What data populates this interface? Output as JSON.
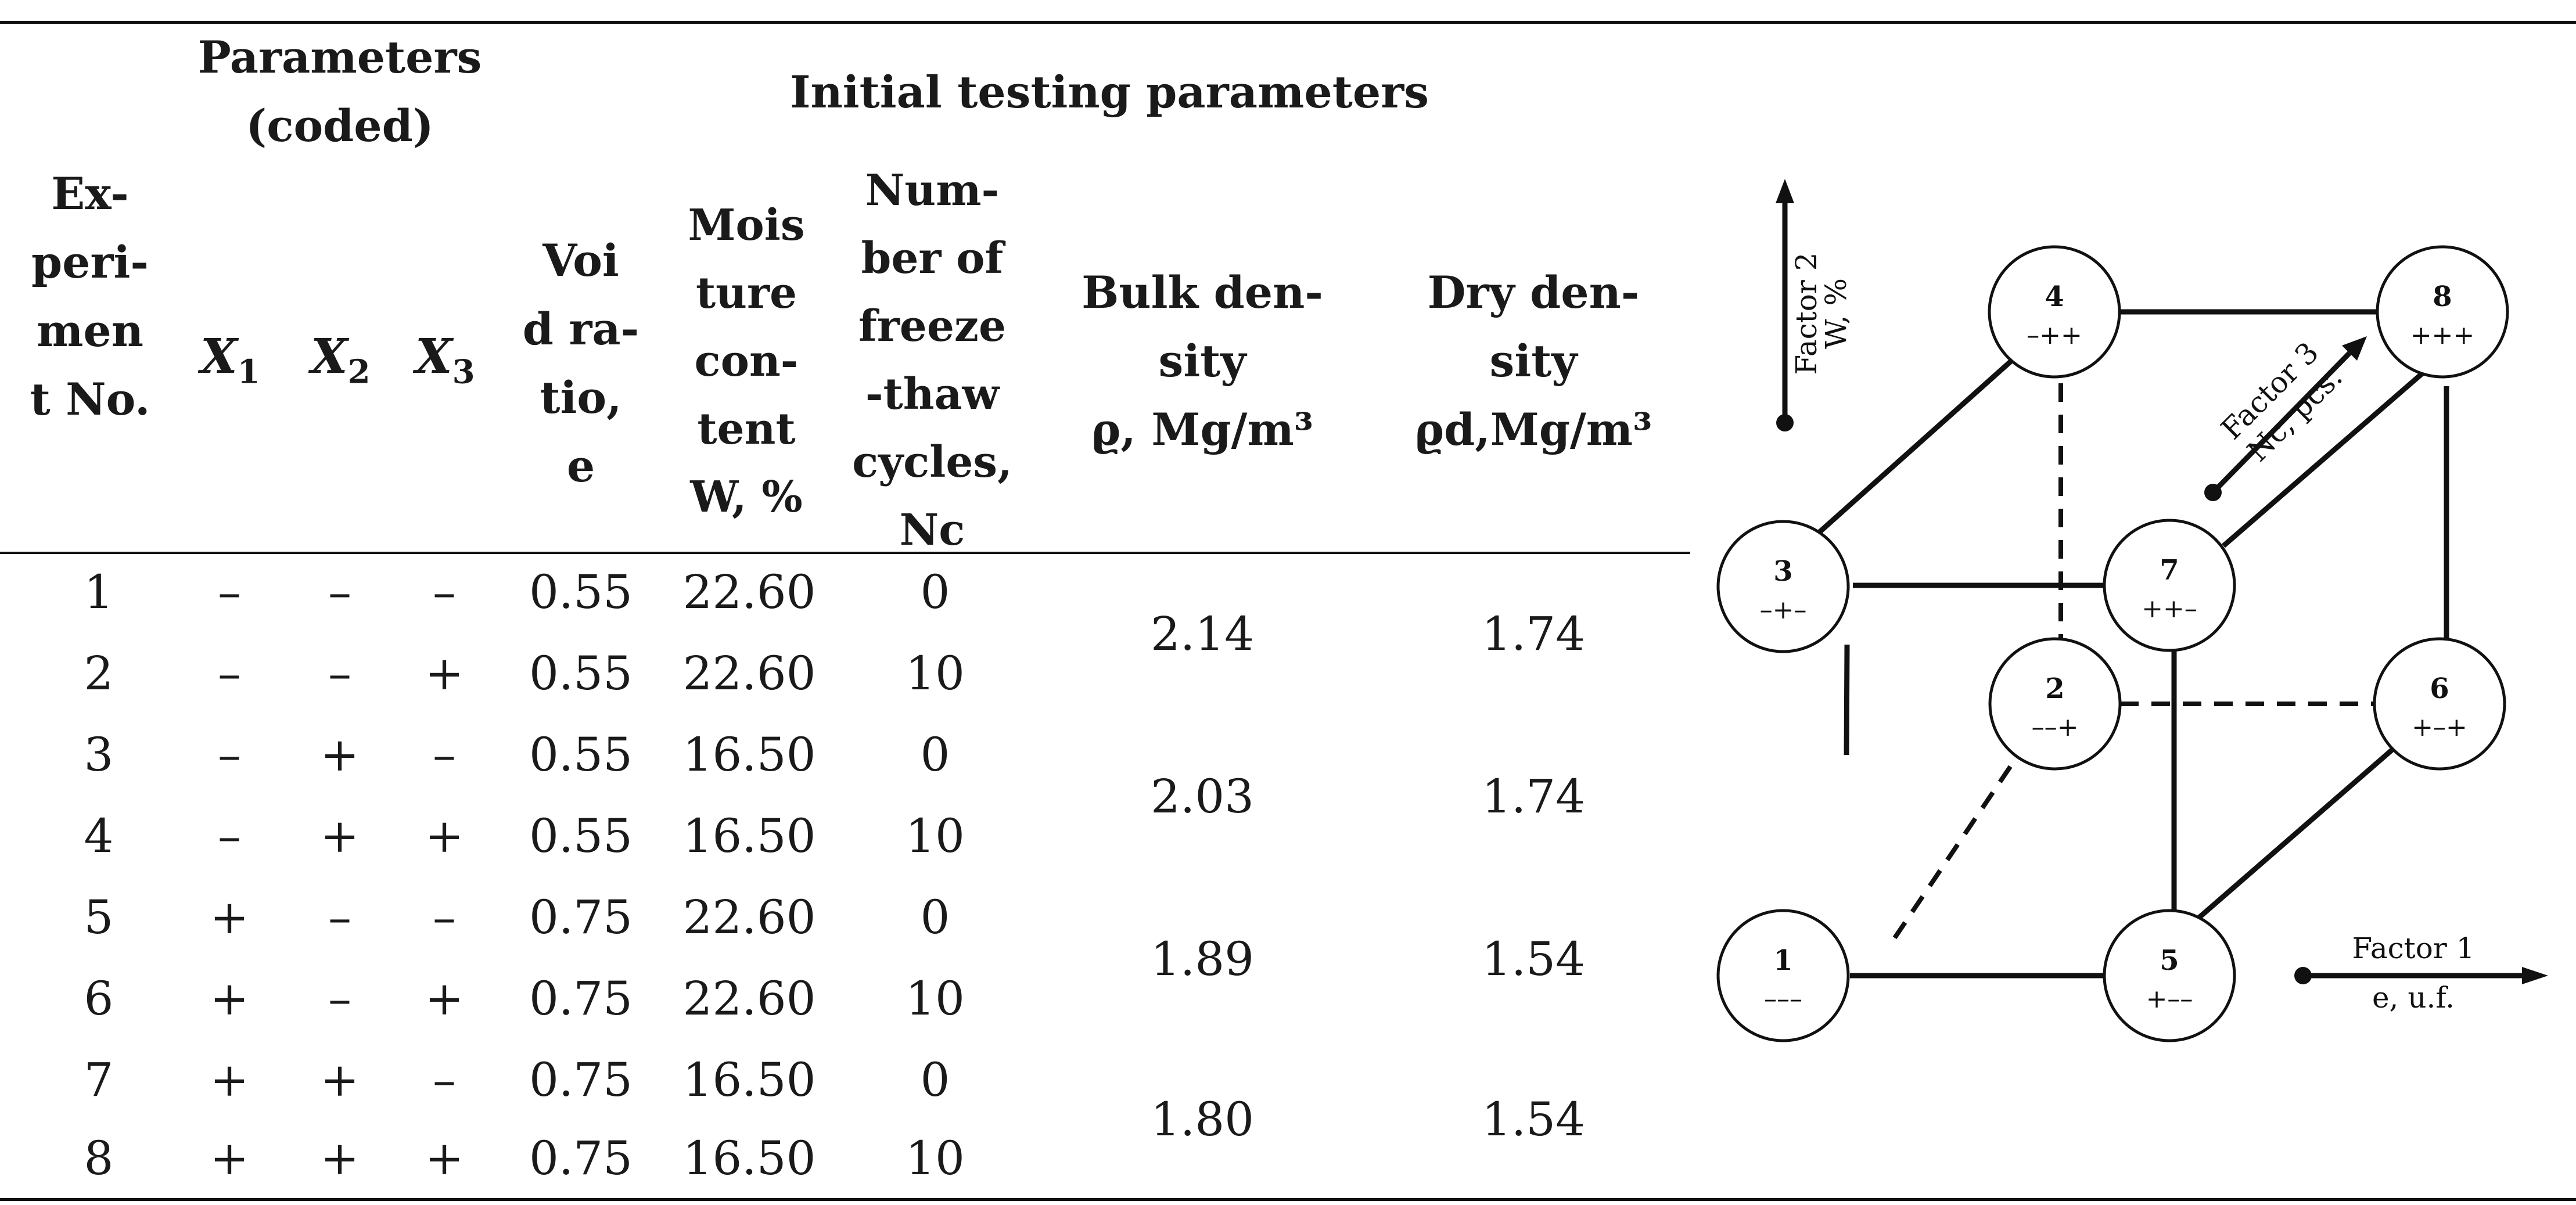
{
  "table": {
    "header": {
      "parameters_coded": [
        "Parameters",
        "(coded)"
      ],
      "initial_testing": "Initial testing parameters",
      "experiment_no": [
        "Ex-",
        "peri-",
        "men",
        "t No."
      ],
      "x1_var": "X",
      "x1_sub": "1",
      "x2_var": "X",
      "x2_sub": "2",
      "x3_var": "X",
      "x3_sub": "3",
      "void_ratio": [
        "Voi",
        "d ra-",
        "tio,",
        "e"
      ],
      "moisture": [
        "Mois",
        "ture",
        "con-",
        "tent",
        "W, %"
      ],
      "cycles": [
        "Num-",
        "ber of",
        "freeze",
        "-thaw",
        "cycles,",
        "Nc"
      ],
      "bulk_density": [
        "Bulk den-",
        "sity",
        "ϱ, Mg/m³"
      ],
      "dry_density": [
        "Dry den-",
        "sity",
        "ϱd,Mg/m³"
      ]
    },
    "rows": [
      {
        "no": "1",
        "x1": "–",
        "x2": "–",
        "x3": "–",
        "void": "0.55",
        "moisture": "22.60",
        "cycles": "0"
      },
      {
        "no": "2",
        "x1": "–",
        "x2": "–",
        "x3": "+",
        "void": "0.55",
        "moisture": "22.60",
        "cycles": "10"
      },
      {
        "no": "3",
        "x1": "–",
        "x2": "+",
        "x3": "–",
        "void": "0.55",
        "moisture": "16.50",
        "cycles": "0"
      },
      {
        "no": "4",
        "x1": "–",
        "x2": "+",
        "x3": "+",
        "void": "0.55",
        "moisture": "16.50",
        "cycles": "10"
      },
      {
        "no": "5",
        "x1": "+",
        "x2": "–",
        "x3": "–",
        "void": "0.75",
        "moisture": "22.60",
        "cycles": "0"
      },
      {
        "no": "6",
        "x1": "+",
        "x2": "–",
        "x3": "+",
        "void": "0.75",
        "moisture": "22.60",
        "cycles": "10"
      },
      {
        "no": "7",
        "x1": "+",
        "x2": "+",
        "x3": "–",
        "void": "0.75",
        "moisture": "16.50",
        "cycles": "0"
      },
      {
        "no": "8",
        "x1": "+",
        "x2": "+",
        "x3": "+",
        "void": "0.75",
        "moisture": "16.50",
        "cycles": "10"
      }
    ],
    "merged": [
      {
        "bulk": "2.14",
        "dry": "1.74"
      },
      {
        "bulk": "2.03",
        "dry": "1.74"
      },
      {
        "bulk": "1.89",
        "dry": "1.54"
      },
      {
        "bulk": "1.80",
        "dry": "1.54"
      }
    ]
  },
  "diagram": {
    "factor1": {
      "name": "Factor 1",
      "unit": "e, u.f."
    },
    "factor2": {
      "name": "Factor 2",
      "unit": "W, %"
    },
    "factor3": {
      "name": "Factor 3",
      "unit": "Nc, pcs."
    },
    "nodes": [
      {
        "id": "1",
        "code": "–––"
      },
      {
        "id": "2",
        "code": "––+"
      },
      {
        "id": "3",
        "code": "–+–"
      },
      {
        "id": "4",
        "code": "–++"
      },
      {
        "id": "5",
        "code": "+––"
      },
      {
        "id": "6",
        "code": "+–+"
      },
      {
        "id": "7",
        "code": "++–"
      },
      {
        "id": "8",
        "code": "+++"
      }
    ]
  }
}
